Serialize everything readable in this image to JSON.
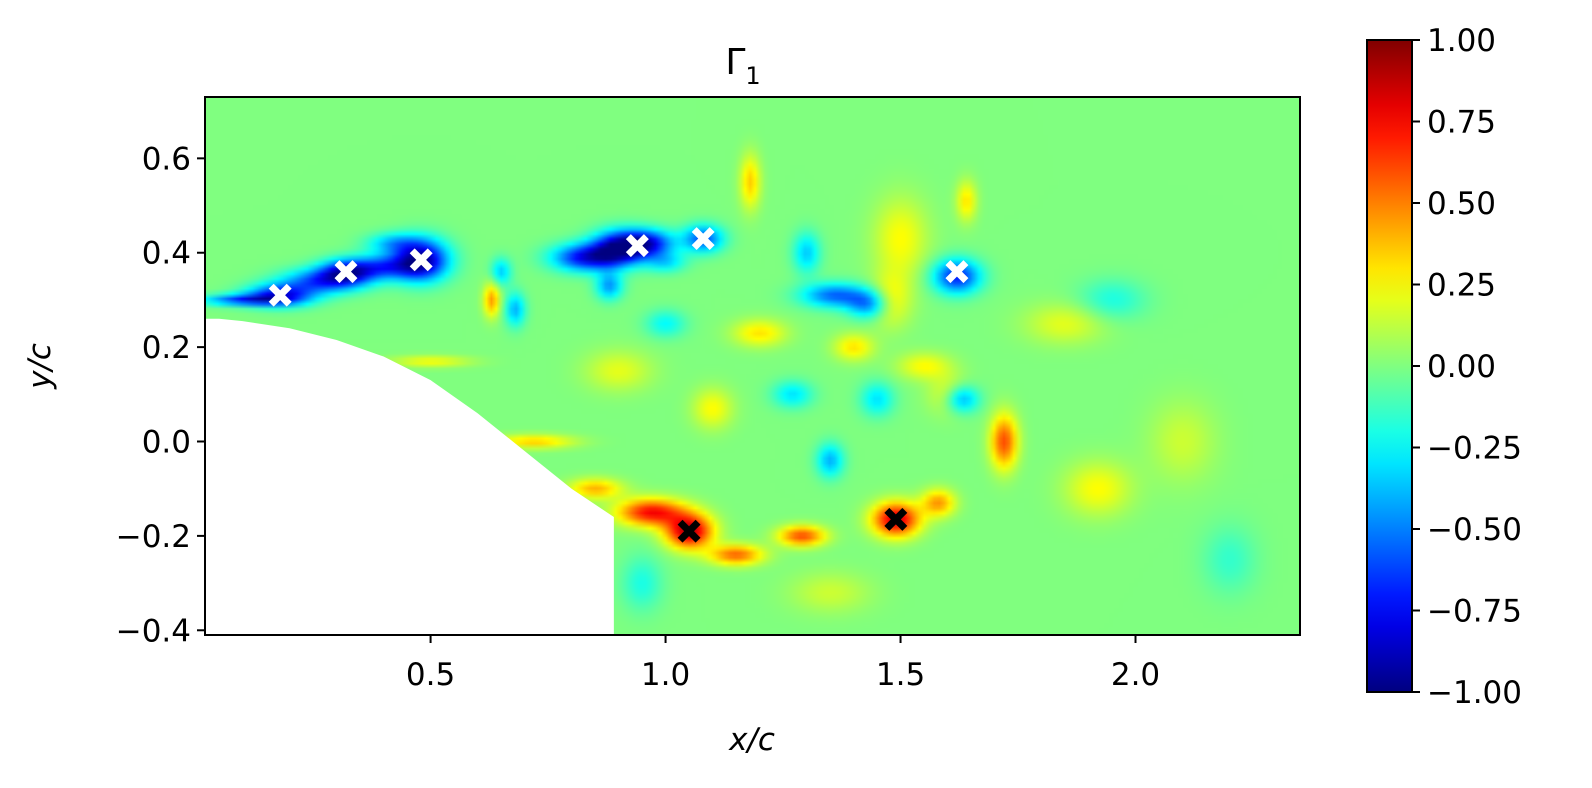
{
  "chart_data": {
    "type": "heatmap",
    "title": "Γ",
    "title_subscript": "1",
    "xlabel": "x/c",
    "ylabel": "y/c",
    "xlim": [
      0.02,
      2.35
    ],
    "ylim": [
      -0.41,
      0.73
    ],
    "x_ticks": [
      0.5,
      1.0,
      1.5,
      2.0
    ],
    "x_tick_labels": [
      "0.5",
      "1.0",
      "1.5",
      "2.0"
    ],
    "y_ticks": [
      0.6,
      0.4,
      0.2,
      0.0,
      -0.2,
      -0.4
    ],
    "y_tick_labels": [
      "0.6",
      "0.4",
      "0.2",
      "0.0",
      "−0.2",
      "−0.4"
    ],
    "colorbar": {
      "colormap": "jet",
      "vmin": -1.0,
      "vmax": 1.0,
      "ticks": [
        1.0,
        0.75,
        0.5,
        0.25,
        0.0,
        -0.25,
        -0.5,
        -0.75,
        -1.0
      ],
      "tick_labels": [
        "1.00",
        "0.75",
        "0.50",
        "0.25",
        "0.00",
        "−0.25",
        "−0.50",
        "−0.75",
        "−1.00"
      ]
    },
    "background_value": 0.0,
    "body_mask": {
      "description_free": true,
      "boundary_x": [
        0.02,
        0.05,
        0.1,
        0.2,
        0.3,
        0.4,
        0.5,
        0.6,
        0.7,
        0.8,
        0.89,
        0.89
      ],
      "boundary_y": [
        0.26,
        0.26,
        0.255,
        0.24,
        0.215,
        0.18,
        0.13,
        0.06,
        -0.02,
        -0.1,
        -0.16,
        -0.41
      ]
    },
    "negative_markers": {
      "color": "#ffffff",
      "x": [
        0.18,
        0.32,
        0.48,
        0.94,
        1.08,
        1.62
      ],
      "y": [
        0.31,
        0.36,
        0.385,
        0.415,
        0.43,
        0.36
      ]
    },
    "positive_markers": {
      "color": "#000000",
      "x": [
        1.05,
        1.49
      ],
      "y": [
        -0.19,
        -0.165
      ]
    },
    "field_blobs": [
      {
        "x": 0.1,
        "y": 0.3,
        "value": -0.6,
        "sx": 0.06,
        "sy": 0.008
      },
      {
        "x": 0.18,
        "y": 0.31,
        "value": -0.75,
        "sx": 0.05,
        "sy": 0.016
      },
      {
        "x": 0.27,
        "y": 0.34,
        "value": -0.6,
        "sx": 0.06,
        "sy": 0.018
      },
      {
        "x": 0.32,
        "y": 0.36,
        "value": -0.7,
        "sx": 0.04,
        "sy": 0.018
      },
      {
        "x": 0.4,
        "y": 0.37,
        "value": -0.55,
        "sx": 0.05,
        "sy": 0.018
      },
      {
        "x": 0.48,
        "y": 0.385,
        "value": -0.95,
        "sx": 0.04,
        "sy": 0.03
      },
      {
        "x": 0.42,
        "y": 0.42,
        "value": -0.35,
        "sx": 0.04,
        "sy": 0.015
      },
      {
        "x": 0.63,
        "y": 0.3,
        "value": 0.45,
        "sx": 0.012,
        "sy": 0.025
      },
      {
        "x": 0.68,
        "y": 0.28,
        "value": -0.4,
        "sx": 0.015,
        "sy": 0.025
      },
      {
        "x": 0.65,
        "y": 0.36,
        "value": -0.35,
        "sx": 0.015,
        "sy": 0.02
      },
      {
        "x": 0.83,
        "y": 0.39,
        "value": -0.75,
        "sx": 0.05,
        "sy": 0.02
      },
      {
        "x": 0.9,
        "y": 0.41,
        "value": -0.85,
        "sx": 0.04,
        "sy": 0.025
      },
      {
        "x": 0.96,
        "y": 0.42,
        "value": -0.75,
        "sx": 0.04,
        "sy": 0.02
      },
      {
        "x": 1.08,
        "y": 0.43,
        "value": -0.6,
        "sx": 0.03,
        "sy": 0.02
      },
      {
        "x": 0.88,
        "y": 0.33,
        "value": -0.45,
        "sx": 0.02,
        "sy": 0.02
      },
      {
        "x": 1.0,
        "y": 0.38,
        "value": -0.3,
        "sx": 0.03,
        "sy": 0.015
      },
      {
        "x": 1.18,
        "y": 0.55,
        "value": 0.35,
        "sx": 0.015,
        "sy": 0.04
      },
      {
        "x": 1.3,
        "y": 0.4,
        "value": -0.35,
        "sx": 0.02,
        "sy": 0.03
      },
      {
        "x": 1.36,
        "y": 0.31,
        "value": -0.55,
        "sx": 0.05,
        "sy": 0.018
      },
      {
        "x": 1.43,
        "y": 0.29,
        "value": -0.45,
        "sx": 0.03,
        "sy": 0.02
      },
      {
        "x": 1.5,
        "y": 0.43,
        "value": 0.25,
        "sx": 0.04,
        "sy": 0.06
      },
      {
        "x": 1.48,
        "y": 0.3,
        "value": 0.25,
        "sx": 0.03,
        "sy": 0.04
      },
      {
        "x": 1.62,
        "y": 0.35,
        "value": -0.7,
        "sx": 0.035,
        "sy": 0.025
      },
      {
        "x": 1.64,
        "y": 0.51,
        "value": 0.3,
        "sx": 0.015,
        "sy": 0.03
      },
      {
        "x": 1.4,
        "y": 0.2,
        "value": 0.3,
        "sx": 0.03,
        "sy": 0.02
      },
      {
        "x": 1.45,
        "y": 0.09,
        "value": -0.3,
        "sx": 0.025,
        "sy": 0.025
      },
      {
        "x": 1.55,
        "y": 0.16,
        "value": 0.25,
        "sx": 0.04,
        "sy": 0.02
      },
      {
        "x": 1.6,
        "y": 0.1,
        "value": 0.2,
        "sx": 0.03,
        "sy": 0.03
      },
      {
        "x": 1.63,
        "y": 0.09,
        "value": -0.45,
        "sx": 0.025,
        "sy": 0.02
      },
      {
        "x": 1.72,
        "y": 0.0,
        "value": 0.6,
        "sx": 0.02,
        "sy": 0.04
      },
      {
        "x": 1.2,
        "y": 0.23,
        "value": 0.3,
        "sx": 0.04,
        "sy": 0.02
      },
      {
        "x": 1.27,
        "y": 0.1,
        "value": -0.3,
        "sx": 0.03,
        "sy": 0.02
      },
      {
        "x": 1.35,
        "y": -0.04,
        "value": -0.4,
        "sx": 0.02,
        "sy": 0.025
      },
      {
        "x": 1.1,
        "y": 0.07,
        "value": 0.25,
        "sx": 0.03,
        "sy": 0.03
      },
      {
        "x": 0.9,
        "y": 0.15,
        "value": 0.2,
        "sx": 0.05,
        "sy": 0.03
      },
      {
        "x": 1.0,
        "y": 0.25,
        "value": -0.25,
        "sx": 0.03,
        "sy": 0.02
      },
      {
        "x": 0.5,
        "y": 0.17,
        "value": 0.25,
        "sx": 0.06,
        "sy": 0.008
      },
      {
        "x": 0.72,
        "y": 0.0,
        "value": 0.35,
        "sx": 0.06,
        "sy": 0.01
      },
      {
        "x": 0.85,
        "y": -0.1,
        "value": 0.4,
        "sx": 0.04,
        "sy": 0.015
      },
      {
        "x": 0.97,
        "y": -0.15,
        "value": 0.75,
        "sx": 0.05,
        "sy": 0.02
      },
      {
        "x": 1.05,
        "y": -0.19,
        "value": 0.9,
        "sx": 0.035,
        "sy": 0.025
      },
      {
        "x": 1.15,
        "y": -0.24,
        "value": 0.55,
        "sx": 0.04,
        "sy": 0.015
      },
      {
        "x": 1.29,
        "y": -0.2,
        "value": 0.6,
        "sx": 0.035,
        "sy": 0.015
      },
      {
        "x": 1.49,
        "y": -0.165,
        "value": 0.85,
        "sx": 0.035,
        "sy": 0.025
      },
      {
        "x": 1.58,
        "y": -0.13,
        "value": 0.45,
        "sx": 0.025,
        "sy": 0.02
      },
      {
        "x": 1.92,
        "y": -0.1,
        "value": 0.25,
        "sx": 0.05,
        "sy": 0.04
      },
      {
        "x": 2.1,
        "y": 0.0,
        "value": 0.15,
        "sx": 0.05,
        "sy": 0.06
      },
      {
        "x": 1.85,
        "y": 0.25,
        "value": 0.2,
        "sx": 0.06,
        "sy": 0.03
      },
      {
        "x": 1.95,
        "y": 0.3,
        "value": -0.2,
        "sx": 0.05,
        "sy": 0.03
      },
      {
        "x": 2.2,
        "y": -0.25,
        "value": -0.15,
        "sx": 0.04,
        "sy": 0.05
      },
      {
        "x": 0.95,
        "y": -0.3,
        "value": -0.2,
        "sx": 0.03,
        "sy": 0.04
      },
      {
        "x": 1.35,
        "y": -0.32,
        "value": 0.15,
        "sx": 0.06,
        "sy": 0.03
      }
    ]
  }
}
